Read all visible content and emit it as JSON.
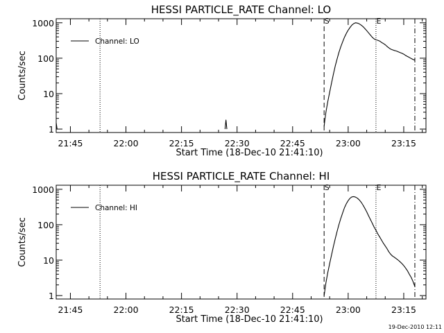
{
  "footer": {
    "timestamp": "19-Dec-2010 12:11"
  },
  "chart_data": [
    {
      "type": "line",
      "title": "HESSI PARTICLE_RATE Channel: LO",
      "xlabel": "Start Time (18-Dec-10 21:41:10)",
      "ylabel": "Counts/sec",
      "yscale": "log",
      "xlim": [
        "21:41:10",
        "23:21:00"
      ],
      "ylim": [
        0.8,
        1300
      ],
      "x_ticks": [
        "21:45",
        "22:00",
        "22:15",
        "22:30",
        "22:45",
        "23:00",
        "23:15"
      ],
      "y_ticks": [
        "1",
        "10",
        "100",
        "1000"
      ],
      "legend": {
        "placement": "top-left",
        "label": "Channel: LO"
      },
      "markers": [
        {
          "time": "21:53:00",
          "style": "dotted",
          "label": ""
        },
        {
          "time": "22:53:30",
          "style": "dashed",
          "label": "S"
        },
        {
          "time": "23:07:30",
          "style": "dotted",
          "label": "E"
        },
        {
          "time": "23:18:00",
          "style": "dashdot",
          "label": ""
        }
      ],
      "series": [
        {
          "name": "Channel: LO",
          "segments": [
            [
              [
                "21:41:10",
                1.5
              ],
              [
                "21:41:25",
                1.0
              ]
            ],
            [
              [
                "22:26:45",
                1.0
              ],
              [
                "22:27:00",
                1.8
              ],
              [
                "22:27:15",
                1.0
              ]
            ],
            [
              [
                "22:53:30",
                1.2
              ],
              [
                "22:53:40",
                1.7
              ],
              [
                "22:54:00",
                3.0
              ],
              [
                "22:54:30",
                6.0
              ],
              [
                "22:55:00",
                11
              ],
              [
                "22:55:30",
                20
              ],
              [
                "22:56:00",
                35
              ],
              [
                "22:56:30",
                60
              ],
              [
                "22:57:00",
                95
              ],
              [
                "22:57:30",
                145
              ],
              [
                "22:58:00",
                210
              ],
              [
                "22:58:30",
                290
              ],
              [
                "22:59:00",
                390
              ],
              [
                "22:59:30",
                500
              ],
              [
                "23:00:00",
                620
              ],
              [
                "23:00:30",
                740
              ],
              [
                "23:01:00",
                860
              ],
              [
                "23:01:30",
                950
              ],
              [
                "23:02:00",
                1000
              ],
              [
                "23:02:30",
                980
              ],
              [
                "23:03:00",
                930
              ],
              [
                "23:03:30",
                860
              ],
              [
                "23:04:00",
                780
              ],
              [
                "23:04:30",
                690
              ],
              [
                "23:05:00",
                600
              ],
              [
                "23:05:30",
                520
              ],
              [
                "23:06:00",
                450
              ],
              [
                "23:06:30",
                390
              ],
              [
                "23:07:00",
                350
              ],
              [
                "23:07:30",
                330
              ],
              [
                "23:08:00",
                320
              ],
              [
                "23:08:30",
                305
              ],
              [
                "23:09:00",
                280
              ],
              [
                "23:09:30",
                260
              ],
              [
                "23:10:00",
                240
              ],
              [
                "23:10:30",
                215
              ],
              [
                "23:11:00",
                195
              ],
              [
                "23:11:30",
                180
              ],
              [
                "23:12:00",
                172
              ],
              [
                "23:12:30",
                165
              ],
              [
                "23:13:00",
                160
              ],
              [
                "23:13:30",
                152
              ],
              [
                "23:14:00",
                145
              ],
              [
                "23:14:30",
                138
              ],
              [
                "23:15:00",
                130
              ],
              [
                "23:15:30",
                120
              ],
              [
                "23:16:00",
                112
              ],
              [
                "23:16:30",
                105
              ],
              [
                "23:17:00",
                98
              ],
              [
                "23:17:30",
                92
              ],
              [
                "23:18:00",
                88
              ]
            ]
          ]
        }
      ]
    },
    {
      "type": "line",
      "title": "HESSI PARTICLE_RATE Channel: HI",
      "xlabel": "Start Time (18-Dec-10 21:41:10)",
      "ylabel": "Counts/sec",
      "yscale": "log",
      "xlim": [
        "21:41:10",
        "23:21:00"
      ],
      "ylim": [
        0.8,
        1300
      ],
      "x_ticks": [
        "21:45",
        "22:00",
        "22:15",
        "22:30",
        "22:45",
        "23:00",
        "23:15"
      ],
      "y_ticks": [
        "1",
        "10",
        "100",
        "1000"
      ],
      "legend": {
        "placement": "top-left",
        "label": "Channel: HI"
      },
      "markers": [
        {
          "time": "21:53:00",
          "style": "dotted",
          "label": ""
        },
        {
          "time": "22:53:30",
          "style": "dashed",
          "label": "S"
        },
        {
          "time": "23:07:30",
          "style": "dotted",
          "label": "E"
        },
        {
          "time": "23:18:00",
          "style": "dashdot",
          "label": ""
        }
      ],
      "series": [
        {
          "name": "Channel: HI",
          "segments": [
            [
              [
                "22:53:30",
                1.0
              ],
              [
                "22:53:45",
                1.5
              ],
              [
                "22:54:00",
                2.3
              ],
              [
                "22:54:30",
                4.5
              ],
              [
                "22:55:00",
                8
              ],
              [
                "22:55:30",
                14
              ],
              [
                "22:56:00",
                24
              ],
              [
                "22:56:30",
                40
              ],
              [
                "22:57:00",
                65
              ],
              [
                "22:57:30",
                100
              ],
              [
                "22:58:00",
                150
              ],
              [
                "22:58:30",
                215
              ],
              [
                "22:59:00",
                300
              ],
              [
                "22:59:30",
                390
              ],
              [
                "23:00:00",
                480
              ],
              [
                "23:00:30",
                560
              ],
              [
                "23:01:00",
                610
              ],
              [
                "23:01:30",
                620
              ],
              [
                "23:02:00",
                600
              ],
              [
                "23:02:30",
                560
              ],
              [
                "23:03:00",
                500
              ],
              [
                "23:03:30",
                430
              ],
              [
                "23:04:00",
                360
              ],
              [
                "23:04:30",
                290
              ],
              [
                "23:05:00",
                230
              ],
              [
                "23:05:30",
                180
              ],
              [
                "23:06:00",
                140
              ],
              [
                "23:06:30",
                110
              ],
              [
                "23:07:00",
                85
              ],
              [
                "23:07:30",
                70
              ],
              [
                "23:08:00",
                55
              ],
              [
                "23:08:30",
                45
              ],
              [
                "23:09:00",
                37
              ],
              [
                "23:09:30",
                30
              ],
              [
                "23:10:00",
                25
              ],
              [
                "23:10:30",
                21
              ],
              [
                "23:11:00",
                17
              ],
              [
                "23:11:30",
                14.5
              ],
              [
                "23:12:00",
                13
              ],
              [
                "23:12:30",
                12
              ],
              [
                "23:13:00",
                11
              ],
              [
                "23:13:30",
                10
              ],
              [
                "23:14:00",
                9
              ],
              [
                "23:14:30",
                8
              ],
              [
                "23:15:00",
                7
              ],
              [
                "23:15:30",
                6
              ],
              [
                "23:16:00",
                5
              ],
              [
                "23:16:30",
                4
              ],
              [
                "23:17:00",
                3.3
              ],
              [
                "23:17:30",
                2.5
              ],
              [
                "23:18:00",
                1.8
              ]
            ]
          ]
        }
      ]
    }
  ]
}
